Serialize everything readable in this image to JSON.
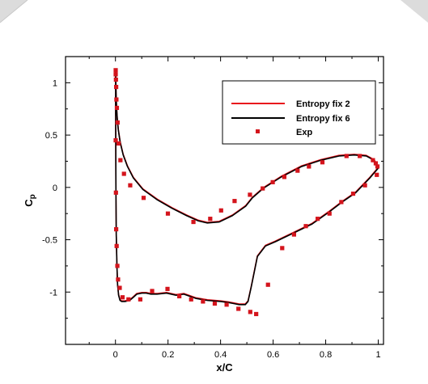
{
  "chart_data": {
    "type": "line",
    "xlabel": "x/C",
    "ylabel_main": "C",
    "ylabel_sub": "p",
    "xlim": [
      -0.19,
      1.02
    ],
    "ylim": [
      -1.5,
      1.25
    ],
    "x_ticks": [
      0,
      0.2,
      0.4,
      0.6,
      0.8,
      1
    ],
    "x_tick_labels": [
      "0",
      "0.2",
      "0.4",
      "0.6",
      "0.8",
      "1"
    ],
    "y_ticks": [
      1,
      0.5,
      0,
      -0.5,
      -1
    ],
    "y_tick_labels": [
      "1",
      "0.5",
      "0",
      "-0.5",
      "-1"
    ],
    "legend_position": "top-right",
    "series": [
      {
        "name": "Entropy fix 2",
        "color": "#e8141c",
        "style": "line",
        "x": [
          0.9966,
          0.9837,
          0.9543,
          0.9086,
          0.8506,
          0.7824,
          0.7085,
          0.631,
          0.562,
          0.521,
          0.4954,
          0.445,
          0.3951,
          0.3498,
          0.3156,
          0.2706,
          0.2154,
          0.1599,
          0.1043,
          0.0681,
          0.0456,
          0.0294,
          0.018,
          0.0108,
          0.0067,
          0.004,
          0.0026,
          0.0017,
          0.0008,
          0.0007,
          0.0018,
          0.003,
          0.0056,
          0.008,
          0.0119,
          0.0173,
          0.0237,
          0.036,
          0.054,
          0.0681,
          0.081,
          0.1008,
          0.1169,
          0.135,
          0.1584,
          0.1944,
          0.2304,
          0.2601,
          0.3051,
          0.3501,
          0.4005,
          0.4293,
          0.45,
          0.4707,
          0.4941,
          0.5045,
          0.5168,
          0.5402,
          0.5708,
          0.6077,
          0.6743,
          0.7482,
          0.8103,
          0.8625,
          0.9144,
          0.9678,
          1.002
        ],
        "y": [
          0.21,
          0.26,
          0.3,
          0.31,
          0.3,
          0.26,
          0.2,
          0.1,
          -0.01,
          -0.1,
          -0.18,
          -0.27,
          -0.33,
          -0.34,
          -0.32,
          -0.27,
          -0.2,
          -0.12,
          -0.02,
          0.09,
          0.2,
          0.31,
          0.43,
          0.55,
          0.66,
          0.77,
          0.86,
          0.97,
          1.1,
          0.7,
          -0.05,
          -0.45,
          -0.75,
          -0.93,
          -1.03,
          -1.08,
          -1.09,
          -1.09,
          -1.08,
          -1.05,
          -1.02,
          -1.01,
          -1.01,
          -1.02,
          -1.02,
          -1.01,
          -1.03,
          -1.02,
          -1.06,
          -1.08,
          -1.09,
          -1.1,
          -1.11,
          -1.12,
          -1.12,
          -1.09,
          -0.95,
          -0.66,
          -0.56,
          -0.52,
          -0.44,
          -0.35,
          -0.24,
          -0.14,
          -0.05,
          0.09,
          0.19
        ]
      },
      {
        "name": "Entropy fix 6",
        "color": "#000000",
        "style": "line",
        "x": [
          0.9966,
          0.9837,
          0.9543,
          0.9086,
          0.8506,
          0.7824,
          0.7085,
          0.631,
          0.562,
          0.521,
          0.4954,
          0.445,
          0.3951,
          0.3498,
          0.3156,
          0.2706,
          0.2154,
          0.1599,
          0.1043,
          0.0681,
          0.0456,
          0.0294,
          0.018,
          0.0108,
          0.0067,
          0.004,
          0.0026,
          0.0017,
          0.0008,
          0.0007,
          0.0018,
          0.003,
          0.0056,
          0.008,
          0.0119,
          0.0173,
          0.0237,
          0.036,
          0.054,
          0.0681,
          0.081,
          0.1008,
          0.1169,
          0.135,
          0.1584,
          0.1944,
          0.2304,
          0.2601,
          0.3051,
          0.3501,
          0.4005,
          0.4293,
          0.45,
          0.4707,
          0.4941,
          0.5045,
          0.5168,
          0.5402,
          0.5708,
          0.6077,
          0.6743,
          0.7482,
          0.8103,
          0.8625,
          0.9144,
          0.9678,
          1.002
        ],
        "y": [
          0.21,
          0.26,
          0.3,
          0.31,
          0.3,
          0.26,
          0.2,
          0.1,
          -0.01,
          -0.1,
          -0.18,
          -0.27,
          -0.33,
          -0.34,
          -0.32,
          -0.27,
          -0.2,
          -0.12,
          -0.02,
          0.09,
          0.2,
          0.31,
          0.43,
          0.55,
          0.66,
          0.77,
          0.86,
          0.97,
          1.1,
          0.7,
          -0.05,
          -0.45,
          -0.75,
          -0.93,
          -1.03,
          -1.08,
          -1.09,
          -1.09,
          -1.08,
          -1.05,
          -1.02,
          -1.01,
          -1.01,
          -1.02,
          -1.02,
          -1.01,
          -1.03,
          -1.02,
          -1.06,
          -1.08,
          -1.09,
          -1.1,
          -1.11,
          -1.12,
          -1.12,
          -1.09,
          -0.95,
          -0.66,
          -0.56,
          -0.52,
          -0.44,
          -0.35,
          -0.24,
          -0.14,
          -0.05,
          0.09,
          0.19
        ]
      },
      {
        "name": "Exp",
        "color": "#d4141c",
        "style": "marker",
        "x": [
          0.9969,
          0.9906,
          0.9798,
          0.9297,
          0.8793,
          0.7875,
          0.7362,
          0.693,
          0.6426,
          0.5985,
          0.5604,
          0.5118,
          0.4533,
          0.402,
          0.3606,
          0.2967,
          0.1995,
          0.1071,
          0.0561,
          0.0324,
          0.0189,
          0.0117,
          0.0081,
          0.0054,
          0.0036,
          0.0027,
          0.0018,
          0.0009,
          0.0009,
          0.0009,
          0.0018,
          0.0027,
          0.0045,
          0.0072,
          0.0099,
          0.0162,
          0.027,
          0.0495,
          0.0945,
          0.1395,
          0.198,
          0.243,
          0.288,
          0.333,
          0.378,
          0.423,
          0.468,
          0.513,
          0.5355,
          0.5805,
          0.6345,
          0.6795,
          0.7245,
          0.7695,
          0.8145,
          0.8595,
          0.9045,
          0.9495,
          0.9945
        ],
        "y": [
          0.2,
          0.23,
          0.26,
          0.3,
          0.3,
          0.24,
          0.2,
          0.16,
          0.1,
          0.05,
          -0.01,
          -0.07,
          -0.13,
          -0.22,
          -0.3,
          -0.33,
          -0.25,
          -0.1,
          0.02,
          0.13,
          0.26,
          0.42,
          0.62,
          0.76,
          0.84,
          0.96,
          1.03,
          1.08,
          1.12,
          0.45,
          -0.05,
          -0.4,
          -0.56,
          -0.75,
          -0.88,
          -0.96,
          -1.05,
          -1.07,
          -1.07,
          -0.99,
          -0.97,
          -1.04,
          -1.07,
          -1.09,
          -1.11,
          -1.12,
          -1.16,
          -1.19,
          -1.21,
          -0.93,
          -0.58,
          -0.45,
          -0.37,
          -0.3,
          -0.25,
          -0.14,
          -0.06,
          0.02,
          0.12
        ]
      }
    ]
  }
}
